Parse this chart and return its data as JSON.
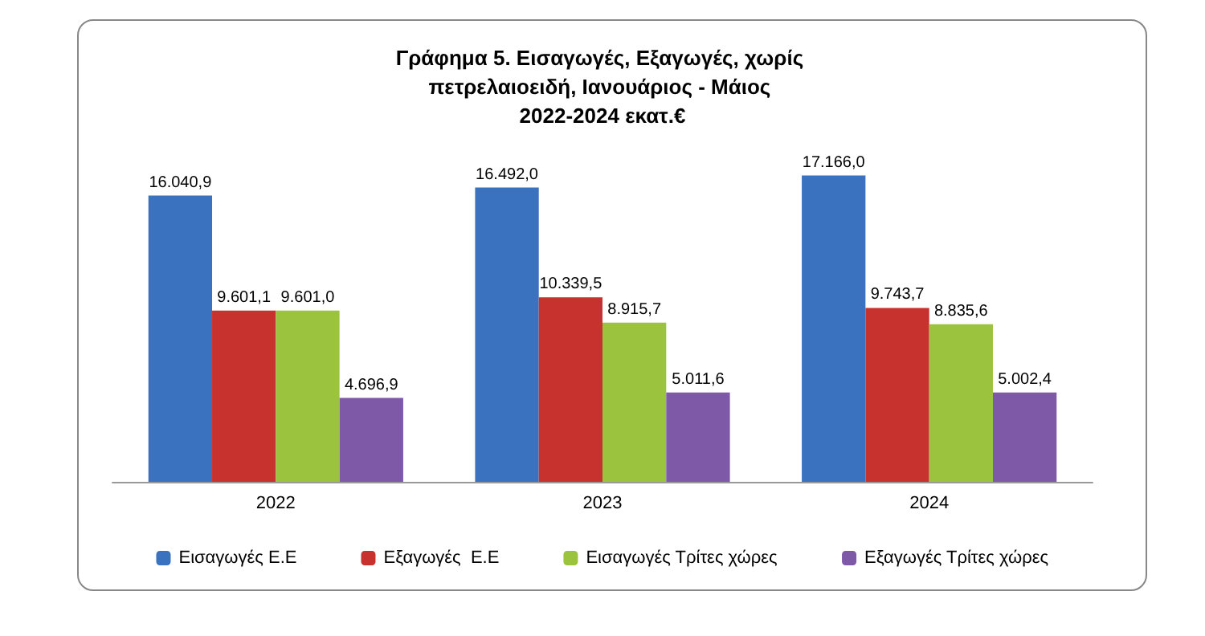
{
  "chart_data": {
    "type": "bar",
    "title": "Γράφημα 5. Εισαγωγές, Εξαγωγές, χωρίς πετρελαιοειδή, Ιανουάριος - Μάιος 2022-2024 εκατ.€",
    "categories": [
      "2022",
      "2023",
      "2024"
    ],
    "series": [
      {
        "name": "Εισαγωγές Ε.Ε",
        "color": "#3b72c0",
        "values": [
          16040.9,
          16492.0,
          17166.0
        ],
        "value_labels": [
          "16.040,9",
          "16.492,0",
          "17.166,0"
        ]
      },
      {
        "name": "Εξαγωγές  Ε.Ε",
        "color": "#c8322e",
        "values": [
          9601.1,
          10339.5,
          9743.7
        ],
        "value_labels": [
          "9.601,1",
          "10.339,5",
          "9.743,7"
        ]
      },
      {
        "name": "Εισαγωγές Τρίτες χώρες",
        "color": "#9bc33e",
        "values": [
          9601.0,
          8915.7,
          8835.6
        ],
        "value_labels": [
          "9.601,0",
          "8.915,7",
          "8.835,6"
        ]
      },
      {
        "name": "Εξαγωγές Τρίτες χώρες",
        "color": "#7e59a8",
        "values": [
          4696.9,
          5011.6,
          5002.4
        ],
        "value_labels": [
          "4.696,9",
          "5.011,6",
          "5.002,4"
        ]
      }
    ],
    "legend": "bottom"
  }
}
